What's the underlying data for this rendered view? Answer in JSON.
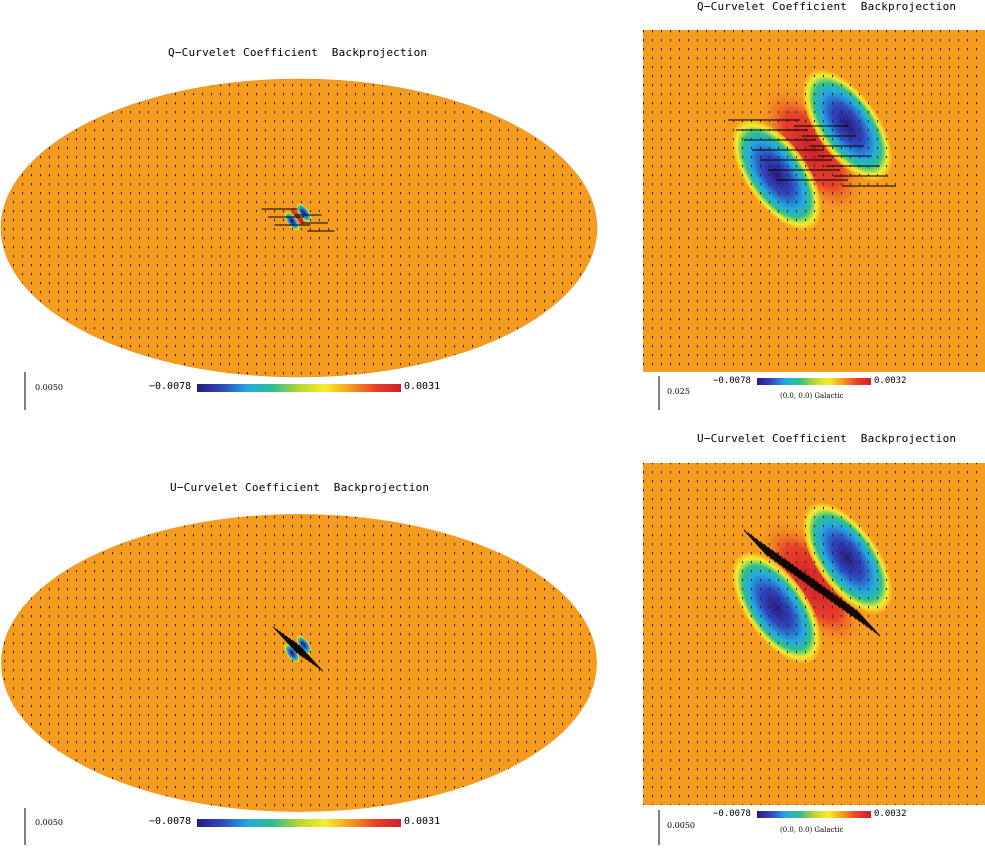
{
  "panels": [
    {
      "id": "q-mollweide",
      "title": "Q−Curvelet Coefficient  Backprojection",
      "scale_label": "0.0050",
      "colorbar_min": "−0.0078",
      "colorbar_max": "0.0031",
      "caption": "",
      "pattern_orientation": "horizontal"
    },
    {
      "id": "q-zoom",
      "title": "Q−Curvelet Coefficient  Backprojection",
      "scale_label": "0.025",
      "colorbar_min": "−0.0078",
      "colorbar_max": "0.0032",
      "caption": "(0.0, 0.0) Galactic",
      "pattern_orientation": "horizontal"
    },
    {
      "id": "u-mollweide",
      "title": "U−Curvelet Coefficient  Backprojection",
      "scale_label": "0.0050",
      "colorbar_min": "−0.0078",
      "colorbar_max": "0.0031",
      "caption": "",
      "pattern_orientation": "diagonal"
    },
    {
      "id": "u-zoom",
      "title": "U−Curvelet Coefficient  Backprojection",
      "scale_label": "0.0050",
      "colorbar_min": "−0.0078",
      "colorbar_max": "0.0032",
      "caption": "(0.0, 0.0) Galactic",
      "pattern_orientation": "diagonal"
    }
  ],
  "colors": {
    "background_map": "#f59c1f",
    "colormap": [
      "#2b1a7e",
      "#2f49c0",
      "#23a9e2",
      "#2ec08c",
      "#b9d531",
      "#f5ee2a",
      "#f59c1f",
      "#e8412a",
      "#cc1f2a"
    ]
  }
}
